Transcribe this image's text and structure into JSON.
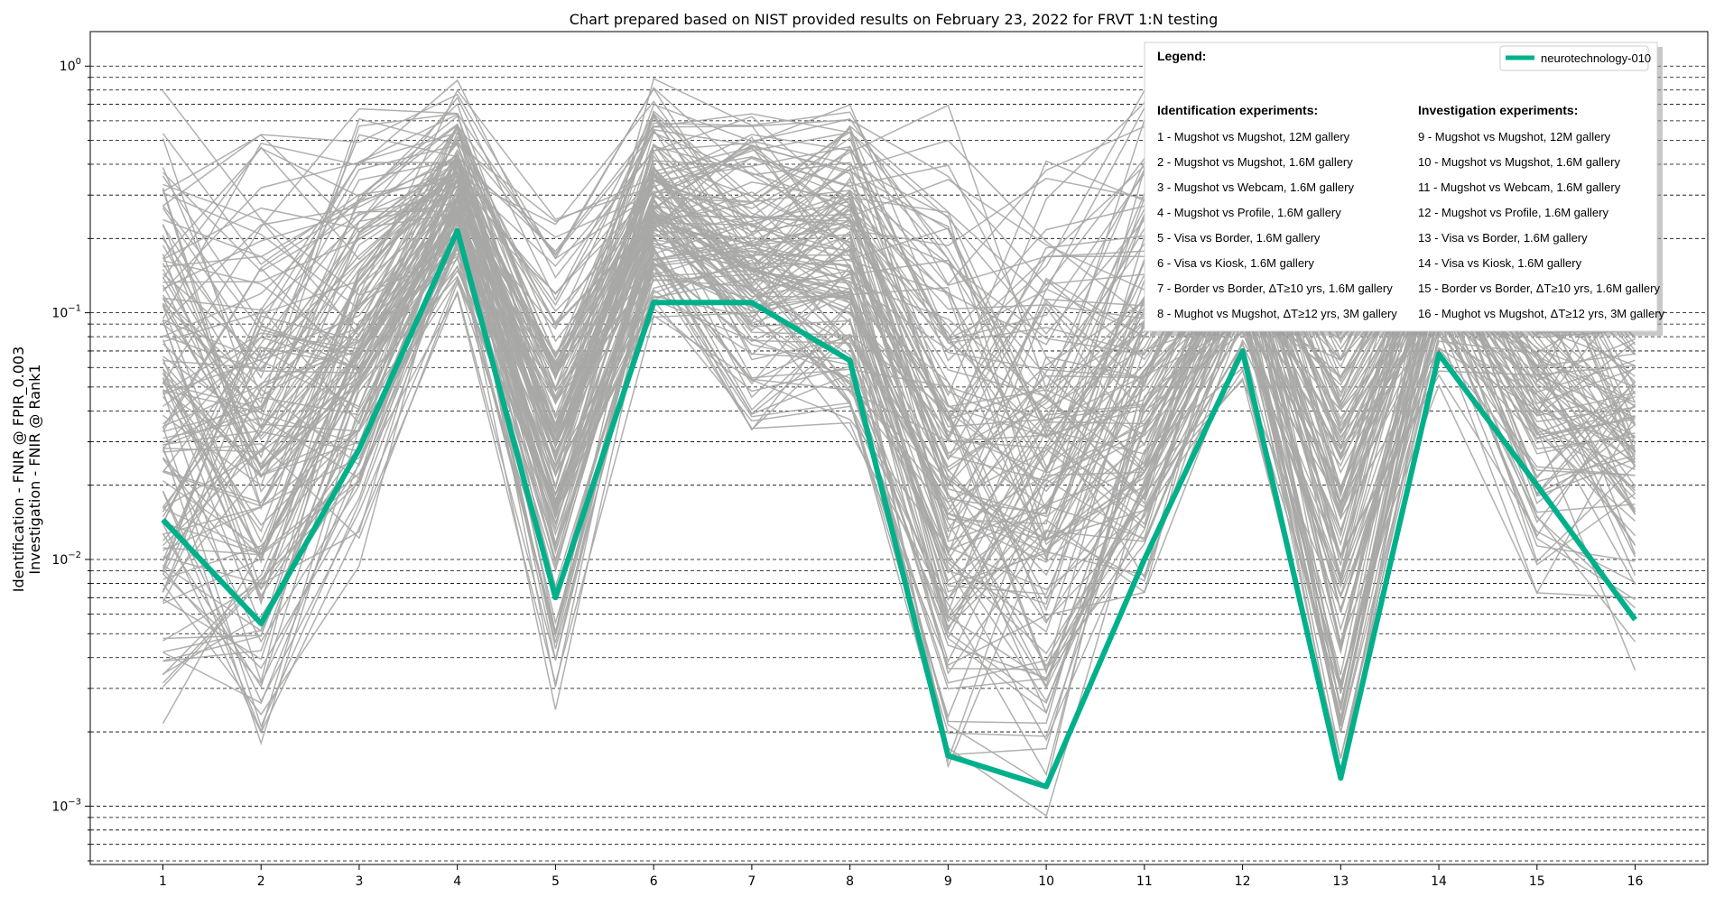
{
  "chart_data": {
    "type": "line",
    "title": "Chart prepared based on NIST provided results on February 23, 2022 for FRVT 1:N testing",
    "ylabel_line1": "Identification - FNIR @ FPIR_0.003",
    "ylabel_line2": "Investigation - FNIR @ Rank1",
    "xlabel": "",
    "x": [
      1,
      2,
      3,
      4,
      5,
      6,
      7,
      8,
      9,
      10,
      11,
      12,
      13,
      14,
      15,
      16
    ],
    "xlim": [
      0.26,
      16.74
    ],
    "yscale": "log",
    "ylim": [
      0.00058,
      1.38
    ],
    "y_ticks": [
      {
        "value": 0.001,
        "base": "10",
        "exp": "−3"
      },
      {
        "value": 0.01,
        "base": "10",
        "exp": "−2"
      },
      {
        "value": 0.1,
        "base": "10",
        "exp": "−1"
      },
      {
        "value": 1,
        "base": "10",
        "exp": "0"
      }
    ],
    "grid": "horizontal dashed lines at major and minor log ticks",
    "highlight_series": {
      "name": "neurotechnology-010",
      "color": "#00b08a",
      "values": [
        0.0145,
        0.0055,
        0.028,
        0.215,
        0.007,
        0.11,
        0.11,
        0.064,
        0.0016,
        0.0012,
        0.01,
        0.07,
        0.0013,
        0.068,
        0.02,
        0.0057
      ]
    },
    "background_series_color": "#a7a9a6",
    "background_series_note": "Many other algorithms are drawn as gray lines; their names are not shown on the chart.",
    "background_series": {
      "band_low": [
        0.0018,
        0.0012,
        0.008,
        0.11,
        0.002,
        0.07,
        0.03,
        0.03,
        0.001,
        0.0008,
        0.004,
        0.05,
        0.0008,
        0.05,
        0.006,
        0.003
      ],
      "band_high": [
        1.0,
        0.8,
        0.95,
        1.0,
        0.3,
        1.0,
        1.0,
        1.0,
        1.0,
        0.6,
        1.0,
        1.0,
        0.7,
        1.0,
        1.0,
        1.0
      ],
      "count": 140
    },
    "legend": {
      "entry": "neurotechnology-010",
      "heading": "Legend:",
      "identification_heading": "Identification experiments:",
      "investigation_heading": "Investigation experiments:",
      "identification_items": [
        "1 - Mugshot vs Mugshot, 12M gallery",
        "2 - Mugshot vs Mugshot, 1.6M gallery",
        "3 - Mugshot vs Webcam, 1.6M gallery",
        "4 - Mugshot vs Profile, 1.6M gallery",
        "5 - Visa vs Border, 1.6M gallery",
        "6 - Visa vs Kiosk, 1.6M gallery",
        "7 - Border vs Border, ΔT≥10 yrs, 1.6M gallery",
        "8 - Mughot vs Mugshot, ΔT≥12 yrs, 3M gallery"
      ],
      "investigation_items": [
        "  9 - Mugshot vs Mugshot, 12M gallery",
        "10 - Mugshot vs Mugshot, 1.6M gallery",
        "11 - Mugshot vs Webcam, 1.6M gallery",
        "12 - Mugshot vs Profile, 1.6M gallery",
        "13 - Visa vs Border, 1.6M gallery",
        "14 - Visa vs Kiosk, 1.6M gallery",
        "15 - Border vs Border, ΔT≥10 yrs, 1.6M gallery",
        "16 - Mughot vs Mugshot, ΔT≥12 yrs, 3M gallery"
      ]
    }
  }
}
